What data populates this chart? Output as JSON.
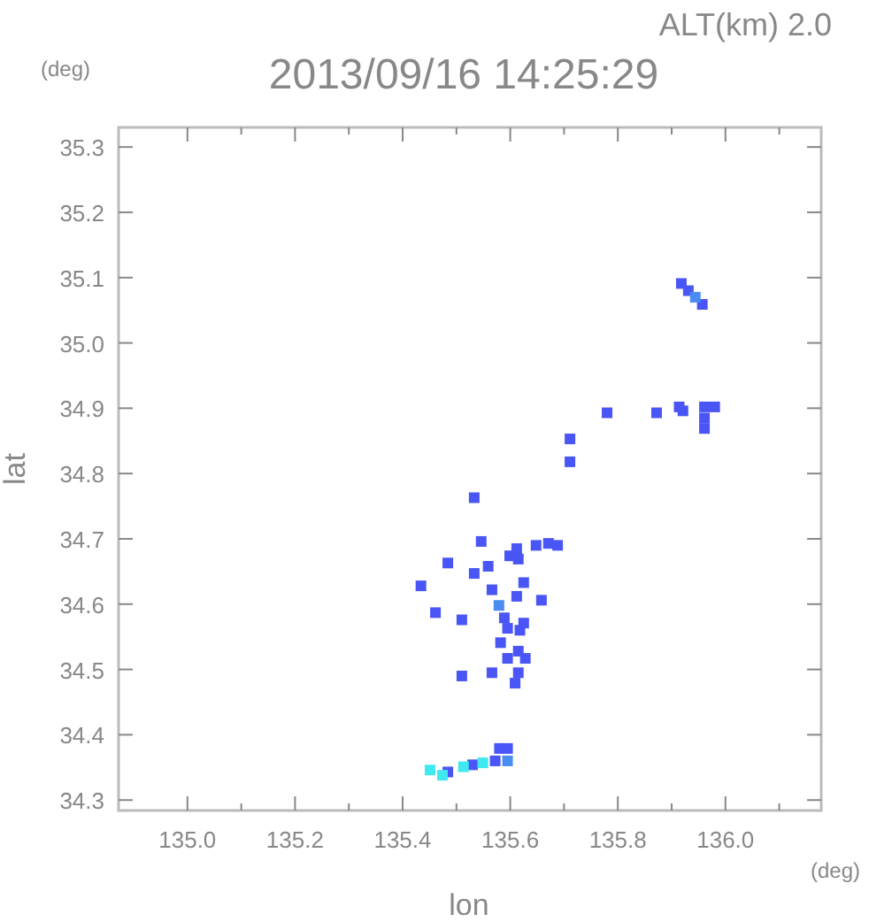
{
  "chart_data": {
    "type": "scatter",
    "title": "2013/09/16 14:25:29",
    "subtitle": "ALT(km) 2.0",
    "xlabel": "lon",
    "ylabel": "lat",
    "annotations": [
      "(deg)",
      "(deg)"
    ],
    "xlim": [
      134.872,
      136.178
    ],
    "ylim": [
      34.284,
      35.33
    ],
    "xticks": [
      {
        "value": 135.0,
        "label": "135.0"
      },
      {
        "value": 135.1,
        "label": null
      },
      135.2,
      {
        "value": 135.3,
        "label": null
      },
      135.4,
      {
        "value": 135.5,
        "label": null
      },
      135.6,
      {
        "value": 135.7,
        "label": null
      },
      135.8,
      {
        "value": 135.9,
        "label": null
      },
      {
        "value": 136.0,
        "label": "136.0"
      },
      {
        "value": 136.1,
        "label": null
      }
    ],
    "yticks": [
      34.3,
      34.4,
      34.5,
      34.6,
      34.7,
      34.8,
      34.9,
      {
        "value": 35.0,
        "label": "35.0"
      },
      35.1,
      35.2,
      35.3
    ],
    "grid": false,
    "marker": "square",
    "series": [
      {
        "color": "#4a55f5",
        "x": [
          135.918,
          135.931,
          135.957,
          135.961,
          135.961,
          135.961,
          135.98,
          135.921,
          135.914,
          135.872,
          135.78,
          135.711,
          135.711,
          135.533,
          135.546,
          135.612,
          135.671,
          135.648,
          135.688,
          135.615,
          135.533,
          135.484,
          135.559,
          135.599,
          135.434,
          135.625,
          135.566,
          135.589,
          135.612,
          135.658,
          135.461,
          135.51,
          135.595,
          135.618,
          135.625,
          135.582,
          135.615,
          135.595,
          135.628,
          135.566,
          135.51,
          135.609,
          135.615,
          135.595,
          135.58,
          135.572,
          135.53,
          135.484
        ],
        "values": [
          35.091,
          35.08,
          35.059,
          34.902,
          34.885,
          34.869,
          34.902,
          34.896,
          34.902,
          34.893,
          34.893,
          34.853,
          34.818,
          34.763,
          34.696,
          34.685,
          34.693,
          34.69,
          34.69,
          34.669,
          34.647,
          34.663,
          34.658,
          34.674,
          34.628,
          34.633,
          34.622,
          34.579,
          34.612,
          34.606,
          34.587,
          34.576,
          34.563,
          34.56,
          34.571,
          34.541,
          34.528,
          34.517,
          34.517,
          34.495,
          34.49,
          34.479,
          34.495,
          34.379,
          34.379,
          34.36,
          34.354,
          34.343
        ]
      },
      {
        "color": "#4a8cf0",
        "x": [
          135.944,
          135.579,
          135.595
        ],
        "values": [
          35.07,
          34.598,
          34.36
        ]
      },
      {
        "color": "#40e8f0",
        "x": [
          135.474,
          135.513,
          135.549,
          135.451
        ],
        "values": [
          34.338,
          34.351,
          34.357,
          34.346
        ]
      }
    ]
  }
}
